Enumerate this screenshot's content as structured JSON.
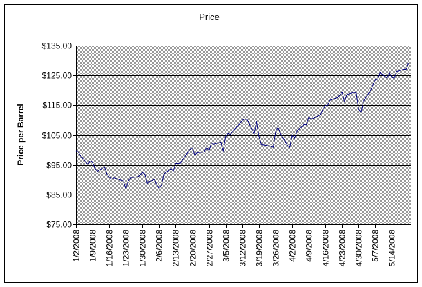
{
  "chart_data": {
    "type": "line",
    "title": "Price",
    "xlabel": "",
    "ylabel": "Price per Barrel",
    "ylim": [
      75,
      135
    ],
    "yticks": [
      75,
      85,
      95,
      105,
      115,
      125,
      135
    ],
    "ytick_labels": [
      "$75.00",
      "$85.00",
      "$95.00",
      "$105.00",
      "$115.00",
      "$125.00",
      "$135.00"
    ],
    "xlim": [
      "2008-01-02",
      "2008-05-21"
    ],
    "xticks": [
      "2008-01-02",
      "2008-01-09",
      "2008-01-16",
      "2008-01-23",
      "2008-01-30",
      "2008-02-06",
      "2008-02-13",
      "2008-02-20",
      "2008-02-27",
      "2008-03-05",
      "2008-03-12",
      "2008-03-19",
      "2008-03-26",
      "2008-04-02",
      "2008-04-09",
      "2008-04-16",
      "2008-04-23",
      "2008-04-30",
      "2008-05-07",
      "2008-05-14"
    ],
    "xtick_labels": [
      "1/2/2008",
      "1/9/2008",
      "1/16/2008",
      "1/23/2008",
      "1/30/2008",
      "2/6/2008",
      "2/13/2008",
      "2/20/2008",
      "2/27/2008",
      "3/5/2008",
      "3/12/2008",
      "3/19/2008",
      "3/26/2008",
      "4/2/2008",
      "4/9/2008",
      "4/16/2008",
      "4/23/2008",
      "4/30/2008",
      "5/7/2008",
      "5/14/2008"
    ],
    "grid": "horizontal",
    "legend": "none",
    "colors": {
      "line": "#000080",
      "plot_background": "#c0c0c0",
      "gridline": "#000000"
    },
    "series": [
      {
        "x": [
          "2008-01-02",
          "2008-01-03",
          "2008-01-04",
          "2008-01-07",
          "2008-01-08",
          "2008-01-09",
          "2008-01-10",
          "2008-01-11",
          "2008-01-14",
          "2008-01-15",
          "2008-01-16",
          "2008-01-17",
          "2008-01-18",
          "2008-01-22",
          "2008-01-23",
          "2008-01-24",
          "2008-01-25",
          "2008-01-28",
          "2008-01-29",
          "2008-01-30",
          "2008-01-31",
          "2008-02-01",
          "2008-02-04",
          "2008-02-05",
          "2008-02-06",
          "2008-02-07",
          "2008-02-08",
          "2008-02-11",
          "2008-02-12",
          "2008-02-13",
          "2008-02-14",
          "2008-02-15",
          "2008-02-19",
          "2008-02-20",
          "2008-02-21",
          "2008-02-22",
          "2008-02-25",
          "2008-02-26",
          "2008-02-27",
          "2008-02-28",
          "2008-02-29",
          "2008-03-03",
          "2008-03-04",
          "2008-03-05",
          "2008-03-06",
          "2008-03-07",
          "2008-03-10",
          "2008-03-11",
          "2008-03-12",
          "2008-03-13",
          "2008-03-14",
          "2008-03-17",
          "2008-03-18",
          "2008-03-19",
          "2008-03-20",
          "2008-03-24",
          "2008-03-25",
          "2008-03-26",
          "2008-03-27",
          "2008-03-28",
          "2008-03-31",
          "2008-04-01",
          "2008-04-02",
          "2008-04-03",
          "2008-04-04",
          "2008-04-07",
          "2008-04-08",
          "2008-04-09",
          "2008-04-10",
          "2008-04-11",
          "2008-04-14",
          "2008-04-15",
          "2008-04-16",
          "2008-04-17",
          "2008-04-18",
          "2008-04-21",
          "2008-04-22",
          "2008-04-23",
          "2008-04-24",
          "2008-04-25",
          "2008-04-28",
          "2008-04-29",
          "2008-04-30",
          "2008-05-01",
          "2008-05-02",
          "2008-05-05",
          "2008-05-06",
          "2008-05-07",
          "2008-05-08",
          "2008-05-09",
          "2008-05-12",
          "2008-05-13",
          "2008-05-14",
          "2008-05-15",
          "2008-05-16",
          "2008-05-19",
          "2008-05-20",
          "2008-05-21"
        ],
        "values": [
          99.6,
          99.2,
          97.9,
          95.1,
          96.3,
          95.7,
          93.7,
          92.7,
          94.2,
          91.9,
          90.8,
          90.1,
          90.6,
          89.5,
          86.9,
          89.4,
          90.7,
          90.9,
          91.6,
          92.3,
          91.8,
          88.8,
          90.1,
          88.4,
          87.1,
          88.1,
          91.8,
          93.6,
          92.8,
          95.5,
          95.5,
          95.6,
          100.1,
          100.7,
          98.2,
          99.0,
          99.2,
          100.8,
          99.6,
          102.3,
          101.8,
          102.5,
          99.5,
          104.5,
          105.5,
          105.2,
          108.0,
          108.7,
          109.9,
          110.3,
          110.2,
          105.5,
          109.4,
          104.5,
          101.8,
          101.2,
          100.9,
          105.9,
          107.6,
          105.6,
          101.5,
          100.9,
          104.8,
          103.9,
          106.2,
          108.5,
          108.4,
          110.9,
          110.3,
          110.6,
          111.8,
          113.7,
          114.9,
          115.0,
          116.7,
          117.5,
          118.3,
          119.4,
          116.1,
          118.5,
          119.3,
          119.0,
          113.5,
          112.5,
          116.3,
          119.9,
          121.8,
          123.5,
          123.7,
          125.9,
          124.1,
          125.8,
          124.3,
          124.1,
          126.3,
          127.0,
          127.0,
          129.1
        ]
      }
    ]
  }
}
